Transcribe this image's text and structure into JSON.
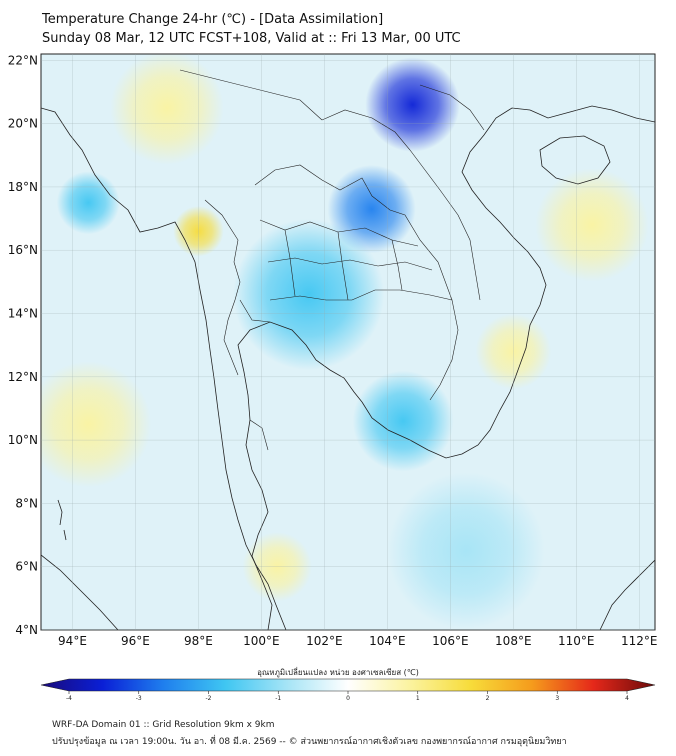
{
  "title_line1": "Temperature Change 24-hr (℃) - [Data Assimilation]",
  "title_line2": "Sunday 08 Mar, 12 UTC FCST+108, Valid at :: Fri 13 Mar, 00 UTC",
  "axes": {
    "lon_labels": [
      "94°E",
      "96°E",
      "98°E",
      "100°E",
      "102°E",
      "104°E",
      "106°E",
      "108°E",
      "110°E",
      "112°E"
    ],
    "lon_values": [
      94,
      96,
      98,
      100,
      102,
      104,
      106,
      108,
      110,
      112
    ],
    "lat_labels": [
      "22°N",
      "20°N",
      "18°N",
      "16°N",
      "14°N",
      "12°N",
      "10°N",
      "8°N",
      "6°N",
      "4°N"
    ],
    "lat_values": [
      22,
      20,
      18,
      16,
      14,
      12,
      10,
      8,
      6,
      4
    ],
    "lon_range": [
      93,
      112.5
    ],
    "lat_range": [
      4,
      22.2
    ]
  },
  "colorbar": {
    "label": "อุณหภูมิเปลี่ยนแปลง หน่วย องศาเซลเซียส (℃)",
    "range": [
      -4,
      4
    ],
    "ticks": [
      "-4",
      "-3",
      "-2",
      "-1",
      "0",
      "1",
      "2",
      "3",
      "4"
    ],
    "tick_values": [
      -4,
      -3,
      -2,
      -1,
      0,
      1,
      2,
      3,
      4
    ],
    "stops": [
      {
        "v": -4.0,
        "c": "#1a0a7a"
      },
      {
        "v": -3.2,
        "c": "#0a1fd6"
      },
      {
        "v": -2.4,
        "c": "#1f7fee"
      },
      {
        "v": -1.6,
        "c": "#3fc6f2"
      },
      {
        "v": -0.8,
        "c": "#a5e4f6"
      },
      {
        "v": 0.0,
        "c": "#ffffff"
      },
      {
        "v": 0.8,
        "c": "#fbf3a0"
      },
      {
        "v": 1.6,
        "c": "#f7dc3a"
      },
      {
        "v": 2.4,
        "c": "#f59b1c"
      },
      {
        "v": 3.2,
        "c": "#e5281a"
      },
      {
        "v": 4.0,
        "c": "#6a0a0a"
      }
    ]
  },
  "field_anomalies": [
    {
      "lon": 104.8,
      "lat": 20.6,
      "value": -3.0,
      "radius_deg": 1.5
    },
    {
      "lon": 103.5,
      "lat": 17.3,
      "value": -2.1,
      "radius_deg": 1.4
    },
    {
      "lon": 101.5,
      "lat": 14.6,
      "value": -1.8,
      "radius_deg": 2.4
    },
    {
      "lon": 104.5,
      "lat": 10.6,
      "value": -1.7,
      "radius_deg": 1.6
    },
    {
      "lon": 98.0,
      "lat": 16.6,
      "value": 1.8,
      "radius_deg": 0.8
    },
    {
      "lon": 110.5,
      "lat": 16.8,
      "value": 1.1,
      "radius_deg": 1.8
    },
    {
      "lon": 97.0,
      "lat": 20.5,
      "value": 0.9,
      "radius_deg": 1.8
    },
    {
      "lon": 94.5,
      "lat": 17.5,
      "value": -1.3,
      "radius_deg": 1.0
    },
    {
      "lon": 108.0,
      "lat": 12.8,
      "value": 0.8,
      "radius_deg": 1.2
    },
    {
      "lon": 100.5,
      "lat": 6.0,
      "value": 0.9,
      "radius_deg": 1.1
    },
    {
      "lon": 94.5,
      "lat": 10.5,
      "value": 0.5,
      "radius_deg": 2.0
    },
    {
      "lon": 106.5,
      "lat": 6.5,
      "value": -0.6,
      "radius_deg": 2.5
    }
  ],
  "footer_line1": "WRF-DA Domain 01 :: Grid Resolution 9km x 9km",
  "footer_line2": "ปรับปรุงข้อมูล ณ เวลา 19:00น. วัน อา. ที่ 08 มี.ค. 2569 -- © ส่วนพยากรณ์อากาศเชิงตัวเลข กองพยากรณ์อากาศ กรมอุตุนิยมวิทยา"
}
